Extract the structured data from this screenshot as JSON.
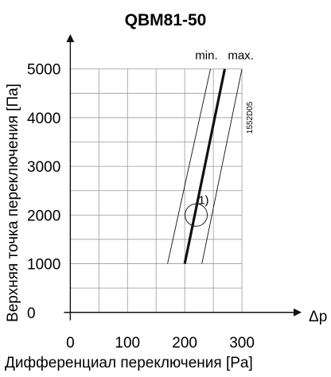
{
  "chart_data": {
    "type": "line",
    "title": "QBM81-50",
    "xlabel": "Дифференциал переключения [Pa]",
    "ylabel": "Верхняя точка переключения [Па]",
    "x_axis_symbol": "Δp",
    "xlim": [
      -20,
      350
    ],
    "ylim": [
      -200,
      5600
    ],
    "x_ticks": [
      0,
      100,
      200,
      300
    ],
    "y_ticks": [
      0,
      1000,
      2000,
      3000,
      4000,
      5000
    ],
    "x_tick_labels": [
      "0",
      "100",
      "200",
      "300"
    ],
    "y_tick_labels": [
      "0",
      "1000",
      "2000",
      "3000",
      "4000",
      "5000"
    ],
    "grid": true,
    "series": [
      {
        "name": "",
        "style": "thick",
        "x": [
          200,
          270
        ],
        "y": [
          1000,
          5000
        ]
      },
      {
        "name": "min.",
        "style": "thin",
        "x": [
          170,
          245
        ],
        "y": [
          1000,
          5000
        ]
      },
      {
        "name": "max.",
        "style": "thin",
        "x": [
          230,
          300
        ],
        "y": [
          1000,
          5000
        ]
      }
    ],
    "annotations": [
      {
        "text": "min.",
        "x": 238,
        "y": 5200
      },
      {
        "text": "max.",
        "x": 298,
        "y": 5200
      },
      {
        "text": "1)",
        "x": 233,
        "y": 2230,
        "circle": {
          "cx": 220,
          "cy": 2000,
          "r": 14
        }
      },
      {
        "text": "1552D05",
        "x": 318,
        "y": 4000,
        "rotated": true
      }
    ]
  }
}
